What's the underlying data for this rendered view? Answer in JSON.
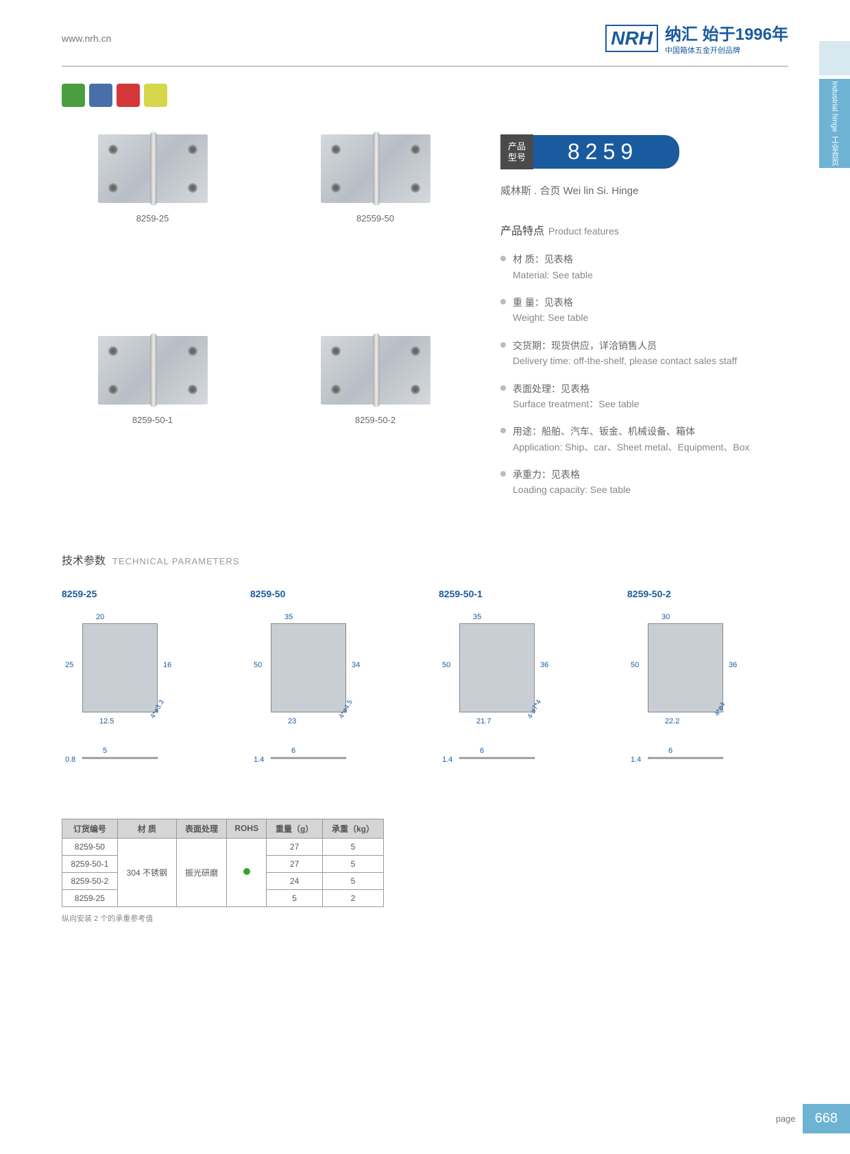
{
  "header": {
    "url": "www.nrh.cn",
    "logo": "NRH",
    "logo_cn": "纳汇 始于1996年",
    "logo_sub": "中国箱体五金开创品牌"
  },
  "side_tab": {
    "en": "Industrial hinge",
    "cn": "工业合页"
  },
  "products": [
    {
      "label": "8259-25"
    },
    {
      "label": "82559-50"
    },
    {
      "label": "8259-50-1"
    },
    {
      "label": "8259-50-2"
    }
  ],
  "model": {
    "label": "产品\n型号",
    "number": "8259",
    "sub": "威林斯 . 合页  Wei lin Si. Hinge"
  },
  "features_title": {
    "cn": "产品特点",
    "en": "Product features"
  },
  "features": [
    {
      "cn": "材 质：见表格",
      "en": "Material: See table"
    },
    {
      "cn": "重 量：见表格",
      "en": "Weight: See table"
    },
    {
      "cn": "交货期：现货供应，详洽销售人员",
      "en": "Delivery time: off-the-shelf, please contact sales staff"
    },
    {
      "cn": "表面处理：见表格",
      "en": "Surface treatment：See table"
    },
    {
      "cn": "用途：船舶、汽车、钣金、机械设备、箱体",
      "en": "Application: Ship、car、Sheet metal、Equipment、Box"
    },
    {
      "cn": "承重力：见表格",
      "en": "Loading capacity: See table"
    }
  ],
  "tech_title": {
    "cn": "技术参数",
    "en": "TECHNICAL PARAMETERS"
  },
  "diagrams": [
    {
      "label": "8259-25",
      "dims": {
        "w": "20",
        "h": "25",
        "h2": "16",
        "w2": "12.5",
        "hole": "4*ø3.3",
        "t": "0.8",
        "pin": "5"
      }
    },
    {
      "label": "8259-50",
      "dims": {
        "w": "35",
        "h": "50",
        "h2": "34",
        "w2": "23",
        "hole": "4*ø4.5",
        "t": "1.4",
        "pin": "6"
      }
    },
    {
      "label": "8259-50-1",
      "dims": {
        "w": "35",
        "h": "50",
        "h2": "36",
        "w2": "21.7",
        "hole": "4-ø7*4",
        "t": "1.4",
        "pin": "6"
      }
    },
    {
      "label": "8259-50-2",
      "dims": {
        "w": "30",
        "h": "50",
        "h2": "36",
        "w2": "22.2",
        "hole": "4*ø4",
        "t": "1.4",
        "pin": "6"
      }
    }
  ],
  "table": {
    "headers": [
      "订货编号",
      "材 质",
      "表面处理",
      "ROHS",
      "重量（g）",
      "承重（kg）"
    ],
    "material": "304 不锈钢",
    "treatment": "振光研磨",
    "rows": [
      {
        "id": "8259-50",
        "weight": "27",
        "load": "5"
      },
      {
        "id": "8259-50-1",
        "weight": "27",
        "load": "5"
      },
      {
        "id": "8259-50-2",
        "weight": "24",
        "load": "5"
      },
      {
        "id": "8259-25",
        "weight": "5",
        "load": "2"
      }
    ],
    "note": "纵向安装 2 个的承重参考值"
  },
  "footer": {
    "label": "page",
    "num": "668"
  }
}
